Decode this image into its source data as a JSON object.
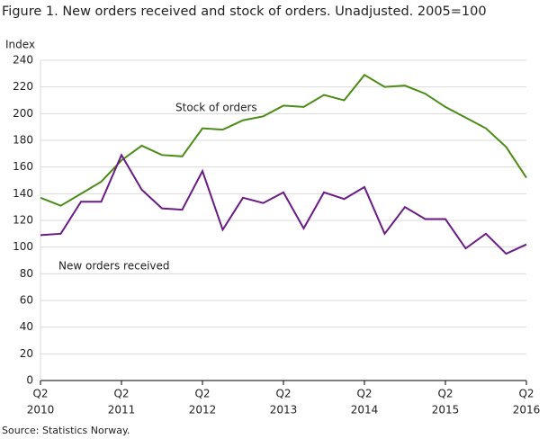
{
  "chart_data": {
    "type": "line",
    "title": "Figure 1. New orders received and stock of orders. Unadjusted. 2005=100",
    "y_label": "Index",
    "source": "Source: Statistics Norway.",
    "categories": [
      "Q2",
      null,
      null,
      null,
      "Q2",
      null,
      null,
      null,
      "Q2",
      null,
      null,
      null,
      "Q2",
      null,
      null,
      null,
      "Q2",
      null,
      null,
      null,
      "Q2",
      null,
      null,
      null,
      "Q2"
    ],
    "category_years": [
      "2010",
      null,
      null,
      null,
      "2011",
      null,
      null,
      null,
      "2012",
      null,
      null,
      null,
      "2013",
      null,
      null,
      null,
      "2014",
      null,
      null,
      null,
      "2015",
      null,
      null,
      null,
      "2016"
    ],
    "series": [
      {
        "name": "Stock of orders",
        "color": "#4a8c14",
        "values": [
          137,
          131,
          140,
          149,
          165,
          176,
          169,
          168,
          189,
          188,
          195,
          198,
          206,
          205,
          214,
          210,
          229,
          220,
          221,
          215,
          205,
          197,
          189,
          175,
          152
        ]
      },
      {
        "name": "New orders received",
        "color": "#6a1b86",
        "values": [
          109,
          110,
          134,
          134,
          169,
          143,
          129,
          128,
          157,
          113,
          137,
          133,
          141,
          114,
          141,
          136,
          145,
          110,
          130,
          121,
          121,
          99,
          110,
          95,
          102
        ]
      }
    ],
    "ylim": [
      0,
      240
    ],
    "yticks": [
      0,
      20,
      40,
      60,
      80,
      100,
      120,
      140,
      160,
      180,
      200,
      220,
      240
    ],
    "grid": true
  }
}
